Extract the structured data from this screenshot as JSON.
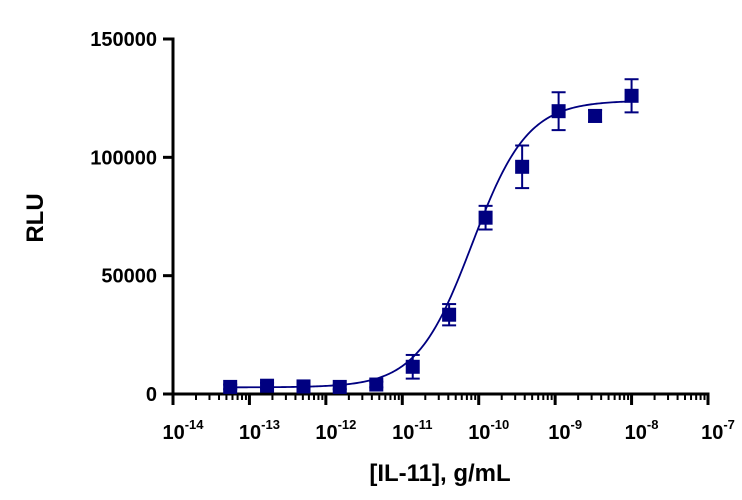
{
  "chart_data": {
    "type": "scatter",
    "title": "",
    "xlabel": "[IL-11], g/mL",
    "ylabel": "RLU",
    "xscale": "log",
    "xlim": [
      1e-14,
      1e-07
    ],
    "ylim": [
      0,
      150000
    ],
    "x_tick_labels": [
      {
        "base": "10",
        "exp": "-14"
      },
      {
        "base": "10",
        "exp": "-13"
      },
      {
        "base": "10",
        "exp": "-12"
      },
      {
        "base": "10",
        "exp": "-11"
      },
      {
        "base": "10",
        "exp": "-10"
      },
      {
        "base": "10",
        "exp": "-9"
      },
      {
        "base": "10",
        "exp": "-8"
      },
      {
        "base": "10",
        "exp": "-7"
      }
    ],
    "y_tick_labels": [
      "0",
      "50000",
      "100000",
      "150000"
    ],
    "y_ticks": [
      0,
      50000,
      100000,
      150000
    ],
    "grid": false,
    "legend": "none",
    "marker": "square",
    "color": "#000080",
    "series": [
      {
        "x": [
          5.6e-14,
          1.7e-13,
          5.1e-13,
          1.52e-12,
          4.57e-12,
          1.37e-11,
          4.1e-11,
          1.23e-10,
          3.7e-10,
          1.11e-09,
          3.33e-09,
          1e-08
        ],
        "y": [
          3000,
          3500,
          3200,
          3000,
          4000,
          11500,
          33500,
          74500,
          96000,
          119500,
          117500,
          126000
        ],
        "error": [
          1000,
          1200,
          1000,
          1000,
          1200,
          5000,
          4500,
          5000,
          9000,
          8000,
          2500,
          7000
        ]
      }
    ],
    "fit": {
      "model": "4PL",
      "bottom": 2800,
      "top": 124000,
      "ec50": 8.2e-11,
      "hill": 1.2
    }
  }
}
